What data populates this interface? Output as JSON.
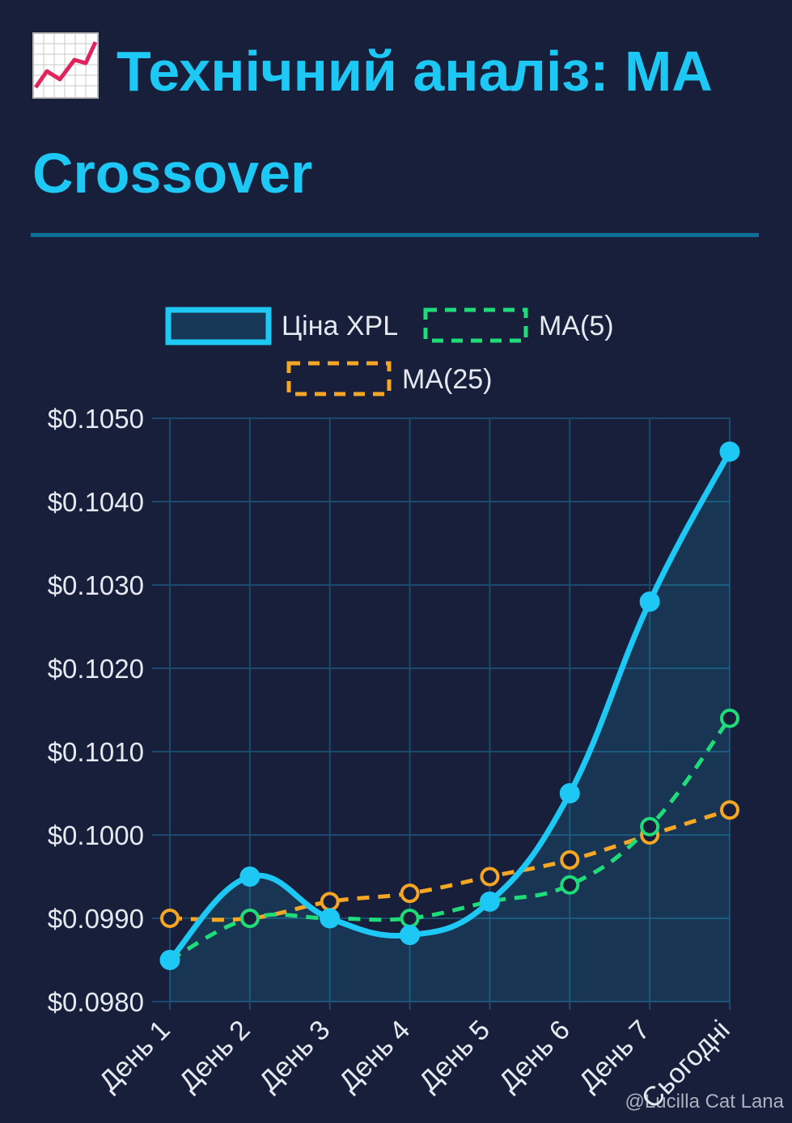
{
  "header": {
    "title_line1": "Технічний аналіз: MA",
    "title_line2": "Crossover",
    "icon": "chart-increasing-icon"
  },
  "colors": {
    "background": "#171f3b",
    "accent": "#1ec8f5",
    "price": "#1ec8f5",
    "ma5": "#1fdc7a",
    "ma25": "#f5a623",
    "grid": "#1c4a6e"
  },
  "chart_data": {
    "type": "line",
    "title": "",
    "xlabel": "",
    "ylabel": "",
    "categories": [
      "День 1",
      "День 2",
      "День 3",
      "День 4",
      "День 5",
      "День 6",
      "День 7",
      "Сьогодні"
    ],
    "ylim": [
      0.098,
      0.105
    ],
    "yticks": [
      "$0.1050",
      "$0.1040",
      "$0.1030",
      "$0.1020",
      "$0.1010",
      "$0.1000",
      "$0.0990",
      "$0.0980"
    ],
    "grid": true,
    "legend_position": "top",
    "series": [
      {
        "name": "Ціна XPL",
        "style": "solid-filled",
        "values": [
          0.0985,
          0.0995,
          0.099,
          0.0988,
          0.0992,
          0.1005,
          0.1028,
          0.1046
        ]
      },
      {
        "name": "MA(5)",
        "style": "dashed",
        "values": [
          0.0985,
          0.099,
          0.099,
          0.099,
          0.0992,
          0.0994,
          0.1001,
          0.1014
        ]
      },
      {
        "name": "MA(25)",
        "style": "dashed",
        "values": [
          0.099,
          0.099,
          0.0992,
          0.0993,
          0.0995,
          0.0997,
          0.1,
          0.1003
        ]
      }
    ]
  },
  "watermark": "@Lucilla Cat Lana"
}
